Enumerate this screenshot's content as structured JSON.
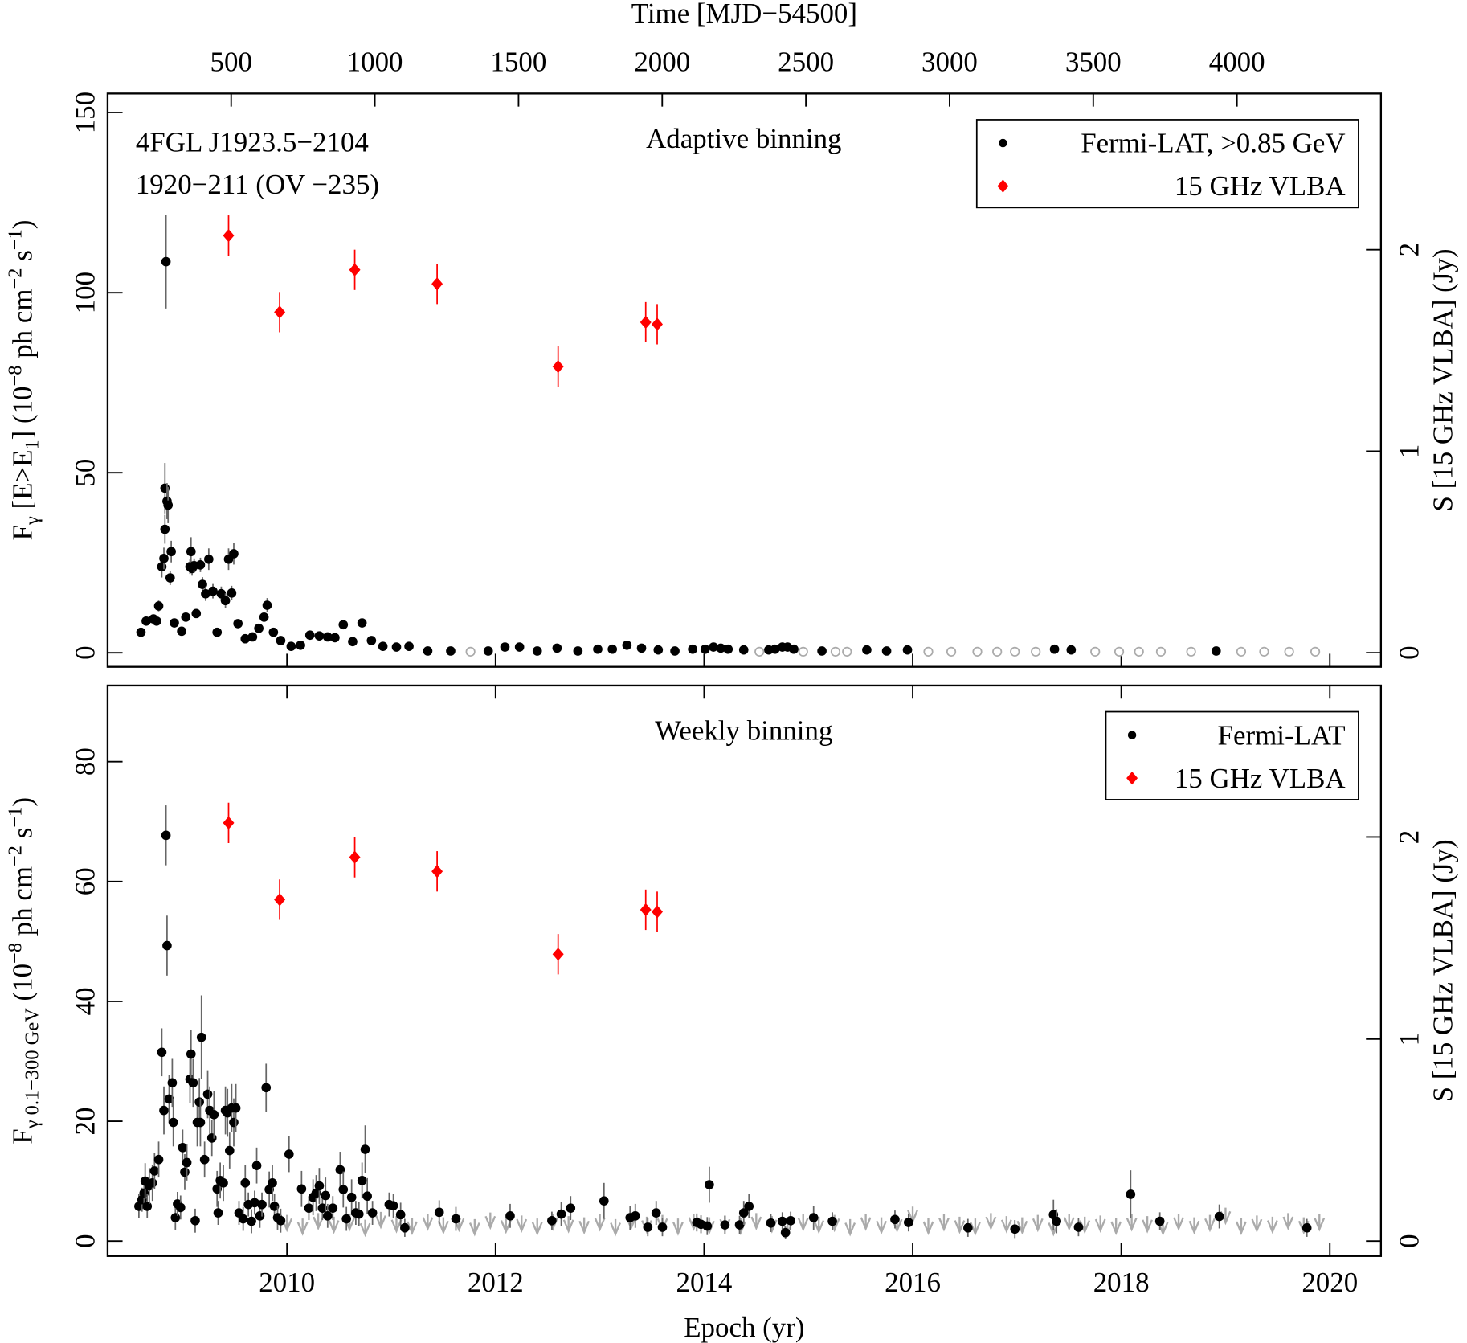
{
  "chart_data": [
    {
      "type": "scatter",
      "source": "4FGL J1923.5−2104",
      "source_alt": "1920−211 (OV −235)",
      "subtitle": "Adaptive binning",
      "x2label": "Time [MJD−54500]",
      "x2lim": [
        70,
        4501
      ],
      "x2ticks": [
        500,
        1000,
        1500,
        2000,
        2500,
        3000,
        3500,
        4000
      ],
      "xlim": [
        2008.28,
        2020.49
      ],
      "ylabel": [
        "F",
        "γ",
        " [E>E",
        "1",
        "] (10",
        "−8",
        " ph cm",
        "−2",
        " s",
        "−1",
        ")"
      ],
      "ylim": [
        -3.9,
        155.3
      ],
      "yticks": [
        0,
        50,
        100,
        150
      ],
      "y2label": "S [15 GHz VLBA] (Jy)",
      "y2lim": [
        -0.07,
        2.775
      ],
      "y2ticks": [
        0,
        1,
        2
      ],
      "y2color": "#ff0000",
      "legend": "upper right",
      "series": [
        {
          "name": "Fermi-LAT, >0.85 GeV",
          "color": "#000000",
          "marker": "dot",
          "x": [
            2008.6,
            2008.65,
            2008.72,
            2008.75,
            2008.77,
            2008.8,
            2008.82,
            2008.83,
            2008.85,
            2008.86,
            2008.83,
            2008.84,
            2008.88,
            2008.89,
            2008.92,
            2008.99,
            2009.03,
            2009.07,
            2009.08,
            2009.09,
            2009.11,
            2009.13,
            2009.17,
            2009.19,
            2009.22,
            2009.25,
            2009.29,
            2009.33,
            2009.37,
            2009.41,
            2009.44,
            2009.47,
            2009.49,
            2009.53,
            2009.6,
            2009.67,
            2009.73,
            2009.78,
            2009.81,
            2009.87,
            2009.94,
            2010.04,
            2010.13,
            2010.22,
            2010.31,
            2010.39,
            2010.46,
            2010.54,
            2010.63,
            2010.72,
            2010.81,
            2010.92,
            2011.05,
            2011.17,
            2011.35,
            2011.57,
            2011.93,
            2012.09,
            2012.23,
            2012.4,
            2012.59,
            2012.79,
            2012.98,
            2013.12,
            2013.26,
            2013.4,
            2013.56,
            2013.72,
            2013.89,
            2014.01,
            2014.09,
            2014.16,
            2014.23,
            2014.38,
            2014.62,
            2014.68,
            2014.75,
            2014.8,
            2014.86,
            2015.13,
            2015.56,
            2015.75,
            2015.95,
            2017.36,
            2017.52,
            2018.91
          ],
          "values": [
            5.7,
            8.8,
            9.4,
            8.8,
            13.0,
            23.9,
            26.2,
            45.7,
            42.1,
            41.0,
            34.3,
            108.6,
            20.8,
            28.1,
            8.3,
            6.0,
            9.9,
            23.9,
            28.1,
            23.4,
            24.2,
            10.9,
            24.4,
            19.0,
            16.4,
            26.0,
            17.1,
            5.7,
            16.4,
            14.5,
            26.0,
            16.6,
            27.5,
            8.1,
            3.9,
            4.4,
            6.8,
            9.9,
            13.2,
            5.7,
            3.4,
            1.8,
            2.1,
            4.9,
            4.7,
            4.4,
            4.2,
            7.8,
            3.1,
            8.3,
            3.4,
            1.8,
            1.6,
            1.8,
            0.5,
            0.5,
            0.5,
            1.6,
            1.6,
            0.5,
            1.3,
            0.5,
            1.0,
            1.0,
            2.1,
            1.3,
            0.8,
            0.5,
            1.0,
            1.0,
            1.6,
            1.3,
            1.0,
            0.8,
            0.8,
            1.0,
            1.6,
            1.6,
            1.0,
            0.5,
            0.8,
            0.5,
            0.8,
            1.0,
            0.8,
            0.5
          ],
          "errors": [
            1,
            1,
            1,
            1,
            1.5,
            3,
            3,
            7,
            5,
            5,
            4,
            13,
            2,
            3,
            1,
            1,
            1,
            2,
            4,
            2,
            2,
            1,
            2,
            2,
            2,
            3,
            2,
            1,
            2,
            2,
            3,
            2,
            3,
            1,
            1,
            1,
            1,
            1,
            2,
            1,
            0.8,
            0.5,
            0.5,
            0.8,
            0.8,
            0.8,
            0.8,
            1,
            0.8,
            1,
            0.8,
            0.5,
            0.4,
            0.4,
            0.3,
            0.3,
            0.3,
            0.4,
            0.4,
            0.3,
            0.4,
            0.3,
            0.3,
            0.3,
            0.5,
            0.4,
            0.3,
            0.3,
            0.3,
            0.3,
            0.4,
            0.4,
            0.3,
            0.3,
            0.3,
            0.3,
            0.4,
            0.4,
            0.3,
            0.3,
            0.3,
            0.3,
            0.3,
            0.3,
            0.3,
            0.3
          ]
        },
        {
          "color": "#aaaaaa",
          "marker": "open",
          "x": [
            2011.76,
            2014.53,
            2014.95,
            2015.26,
            2015.37,
            2016.15,
            2016.37,
            2016.62,
            2016.81,
            2016.98,
            2017.18,
            2017.75,
            2017.98,
            2018.17,
            2018.38,
            2018.67,
            2019.15,
            2019.37,
            2019.61,
            2019.86
          ],
          "values": [
            0.3,
            0.3,
            0.3,
            0.3,
            0.3,
            0.3,
            0.3,
            0.3,
            0.3,
            0.3,
            0.3,
            0.3,
            0.3,
            0.3,
            0.3,
            0.3,
            0.3,
            0.3,
            0.3,
            0.3
          ]
        },
        {
          "name": "15 GHz VLBA",
          "color": "#ff0000",
          "marker": "diamond",
          "axis": "y2",
          "x": [
            2009.44,
            2009.93,
            2010.65,
            2011.44,
            2012.6,
            2013.44,
            2013.55
          ],
          "values": [
            2.07,
            1.69,
            1.9,
            1.83,
            1.42,
            1.64,
            1.63
          ],
          "errors": [
            0.1,
            0.1,
            0.1,
            0.1,
            0.1,
            0.1,
            0.1
          ]
        }
      ]
    },
    {
      "type": "scatter",
      "subtitle": "Weekly binning",
      "xlabel": "Epoch (yr)",
      "xlim": [
        2008.28,
        2020.49
      ],
      "xticks": [
        2010,
        2012,
        2014,
        2016,
        2018,
        2020
      ],
      "ylabel": [
        "F",
        "γ 0.1−300 GeV",
        " (10",
        "−8",
        " ph cm",
        "−2",
        " s",
        "−1",
        ")"
      ],
      "ylim": [
        -2.5,
        92.7
      ],
      "yticks": [
        0,
        20,
        40,
        60,
        80
      ],
      "y2label": "S [15 GHz VLBA] (Jy)",
      "y2lim": [
        -0.074,
        2.75
      ],
      "y2ticks": [
        0,
        1,
        2
      ],
      "y2color": "#ff0000",
      "legend": "upper right",
      "series": [
        {
          "color": "#aaaaaa",
          "marker": "arrow",
          "x": [
            2010.0,
            2010.15,
            2010.3,
            2010.45,
            2010.6,
            2010.75,
            2010.9,
            2011.05,
            2011.2,
            2011.35,
            2011.5,
            2011.65,
            2011.8,
            2011.95,
            2012.1,
            2012.25,
            2012.4,
            2012.55,
            2012.7,
            2012.85,
            2013.0,
            2013.15,
            2013.3,
            2013.45,
            2013.6,
            2013.75,
            2013.9,
            2014.05,
            2014.2,
            2014.35,
            2014.5,
            2014.65,
            2014.8,
            2014.95,
            2015.1,
            2015.25,
            2015.4,
            2015.55,
            2015.7,
            2015.85,
            2016.0,
            2016.15,
            2016.3,
            2016.45,
            2016.6,
            2016.75,
            2016.9,
            2017.05,
            2017.2,
            2017.35,
            2017.5,
            2017.65,
            2017.8,
            2017.95,
            2018.1,
            2018.25,
            2018.4,
            2018.55,
            2018.7,
            2018.85,
            2019.0,
            2019.15,
            2019.3,
            2019.45,
            2019.6,
            2019.75,
            2019.9
          ],
          "values": [
            2.8,
            2.2,
            3.1,
            2.5,
            2.9,
            2.0,
            3.3,
            2.6,
            2.3,
            3.0,
            2.4,
            2.8,
            2.1,
            3.2,
            2.5,
            2.7,
            2.2,
            3.0,
            2.6,
            2.4,
            2.9,
            2.1,
            3.1,
            2.5,
            2.8,
            2.2,
            3.0,
            2.4,
            2.7,
            2.3,
            3.1,
            2.6,
            2.2,
            2.9,
            2.5,
            2.8,
            2.1,
            3.0,
            2.4,
            2.7,
            4.2,
            2.3,
            2.9,
            2.5,
            2.2,
            3.1,
            2.6,
            2.4,
            2.8,
            2.1,
            3.0,
            2.5,
            2.7,
            2.3,
            2.9,
            2.6,
            2.2,
            3.0,
            2.4,
            2.8,
            4.0,
            2.3,
            2.7,
            2.5,
            3.1,
            2.4,
            2.9
          ]
        },
        {
          "name": "Fermi-LAT",
          "color": "#000000",
          "marker": "dot",
          "x": [
            2008.58,
            2008.61,
            2008.63,
            2008.64,
            2008.66,
            2008.68,
            2008.71,
            2008.73,
            2008.77,
            2008.8,
            2008.82,
            2008.84,
            2008.85,
            2008.87,
            2008.9,
            2008.91,
            2008.93,
            2008.95,
            2008.98,
            2009.0,
            2009.02,
            2009.04,
            2009.07,
            2009.08,
            2009.1,
            2009.12,
            2009.14,
            2009.16,
            2009.17,
            2009.18,
            2009.21,
            2009.24,
            2009.26,
            2009.28,
            2009.3,
            2009.33,
            2009.34,
            2009.36,
            2009.39,
            2009.41,
            2009.43,
            2009.45,
            2009.47,
            2009.49,
            2009.51,
            2009.54,
            2009.58,
            2009.6,
            2009.63,
            2009.66,
            2009.69,
            2009.71,
            2009.74,
            2009.76,
            2009.8,
            2009.83,
            2009.86,
            2009.88,
            2009.91,
            2009.94,
            2010.02,
            2010.14,
            2010.21,
            2010.25,
            2010.28,
            2010.31,
            2010.34,
            2010.37,
            2010.39,
            2010.44,
            2010.51,
            2010.54,
            2010.57,
            2010.62,
            2010.66,
            2010.69,
            2010.72,
            2010.75,
            2010.77,
            2010.82,
            2010.98,
            2011.02,
            2011.09,
            2011.13,
            2011.46,
            2011.62,
            2012.14,
            2012.54,
            2012.63,
            2012.72,
            2013.04,
            2013.29,
            2013.34,
            2013.46,
            2013.54,
            2013.6,
            2013.93,
            2013.97,
            2014.03,
            2014.05,
            2014.2,
            2014.34,
            2014.38,
            2014.43,
            2014.64,
            2014.75,
            2014.78,
            2014.83,
            2015.05,
            2015.23,
            2015.83,
            2015.96,
            2016.53,
            2016.98,
            2017.35,
            2017.38,
            2017.59,
            2018.09,
            2018.37,
            2018.94,
            2019.78
          ],
          "values": [
            5.8,
            6.9,
            8.0,
            10.0,
            5.8,
            9.2,
            9.7,
            11.7,
            13.6,
            31.5,
            21.8,
            67.7,
            49.3,
            23.7,
            26.4,
            19.8,
            3.9,
            6.2,
            5.6,
            15.6,
            11.5,
            13.1,
            27.0,
            31.2,
            26.4,
            3.4,
            19.8,
            23.2,
            19.8,
            34.0,
            13.6,
            24.5,
            21.8,
            17.2,
            21.1,
            8.7,
            4.7,
            10.1,
            9.7,
            21.8,
            21.4,
            15.1,
            22.2,
            19.8,
            22.2,
            4.7,
            3.7,
            9.7,
            6.1,
            3.3,
            6.4,
            12.6,
            4.2,
            6.1,
            25.6,
            8.6,
            9.7,
            5.8,
            3.9,
            3.4,
            14.5,
            8.7,
            5.5,
            7.3,
            8.0,
            9.2,
            5.5,
            7.6,
            4.2,
            5.5,
            11.9,
            8.6,
            3.7,
            7.3,
            4.7,
            4.5,
            10.1,
            15.3,
            7.5,
            4.7,
            6.1,
            5.9,
            4.4,
            2.2,
            4.8,
            3.7,
            4.2,
            3.4,
            4.5,
            5.5,
            6.7,
            3.9,
            4.2,
            2.3,
            4.7,
            2.3,
            3.1,
            2.8,
            2.5,
            9.4,
            2.7,
            2.7,
            4.7,
            5.8,
            3.0,
            3.3,
            1.4,
            3.4,
            3.9,
            3.3,
            3.6,
            3.1,
            2.2,
            2.0,
            4.4,
            3.3,
            2.3,
            7.8,
            3.3,
            4.1,
            2.2
          ],
          "errors": [
            2,
            2,
            2,
            3,
            2,
            3,
            3,
            3,
            3,
            4,
            4,
            5,
            5,
            4,
            4,
            4,
            2,
            2,
            2,
            3,
            3,
            3,
            4,
            4,
            4,
            2,
            4,
            4,
            4,
            7,
            3,
            4,
            4,
            3,
            4,
            3,
            2,
            3,
            3,
            4,
            4,
            3,
            4,
            4,
            4,
            2,
            2,
            3,
            2,
            2,
            2,
            3,
            2,
            2,
            4,
            3,
            3,
            2,
            2,
            2,
            3,
            3,
            2,
            3,
            3,
            3,
            2,
            3,
            2,
            2,
            3,
            3,
            2,
            3,
            2,
            2,
            3,
            4,
            3,
            2,
            2,
            2,
            2,
            1.5,
            2,
            2,
            2,
            1.5,
            2,
            2,
            3,
            2,
            2,
            1.5,
            2,
            1.5,
            1.5,
            1.5,
            1.5,
            3,
            1.5,
            1.5,
            2,
            2,
            1.5,
            1.5,
            1,
            1.5,
            2,
            1.5,
            1.5,
            1.5,
            1.5,
            1.5,
            2.5,
            2,
            1.5,
            4,
            1.5,
            2,
            1.5
          ]
        },
        {
          "name": "15 GHz VLBA",
          "color": "#ff0000",
          "marker": "diamond",
          "axis": "y2",
          "x": [
            2009.44,
            2009.93,
            2010.65,
            2011.44,
            2012.6,
            2013.44,
            2013.55
          ],
          "values": [
            2.07,
            1.69,
            1.9,
            1.83,
            1.42,
            1.64,
            1.63
          ],
          "errors": [
            0.1,
            0.1,
            0.1,
            0.1,
            0.1,
            0.1,
            0.1
          ]
        }
      ]
    }
  ]
}
